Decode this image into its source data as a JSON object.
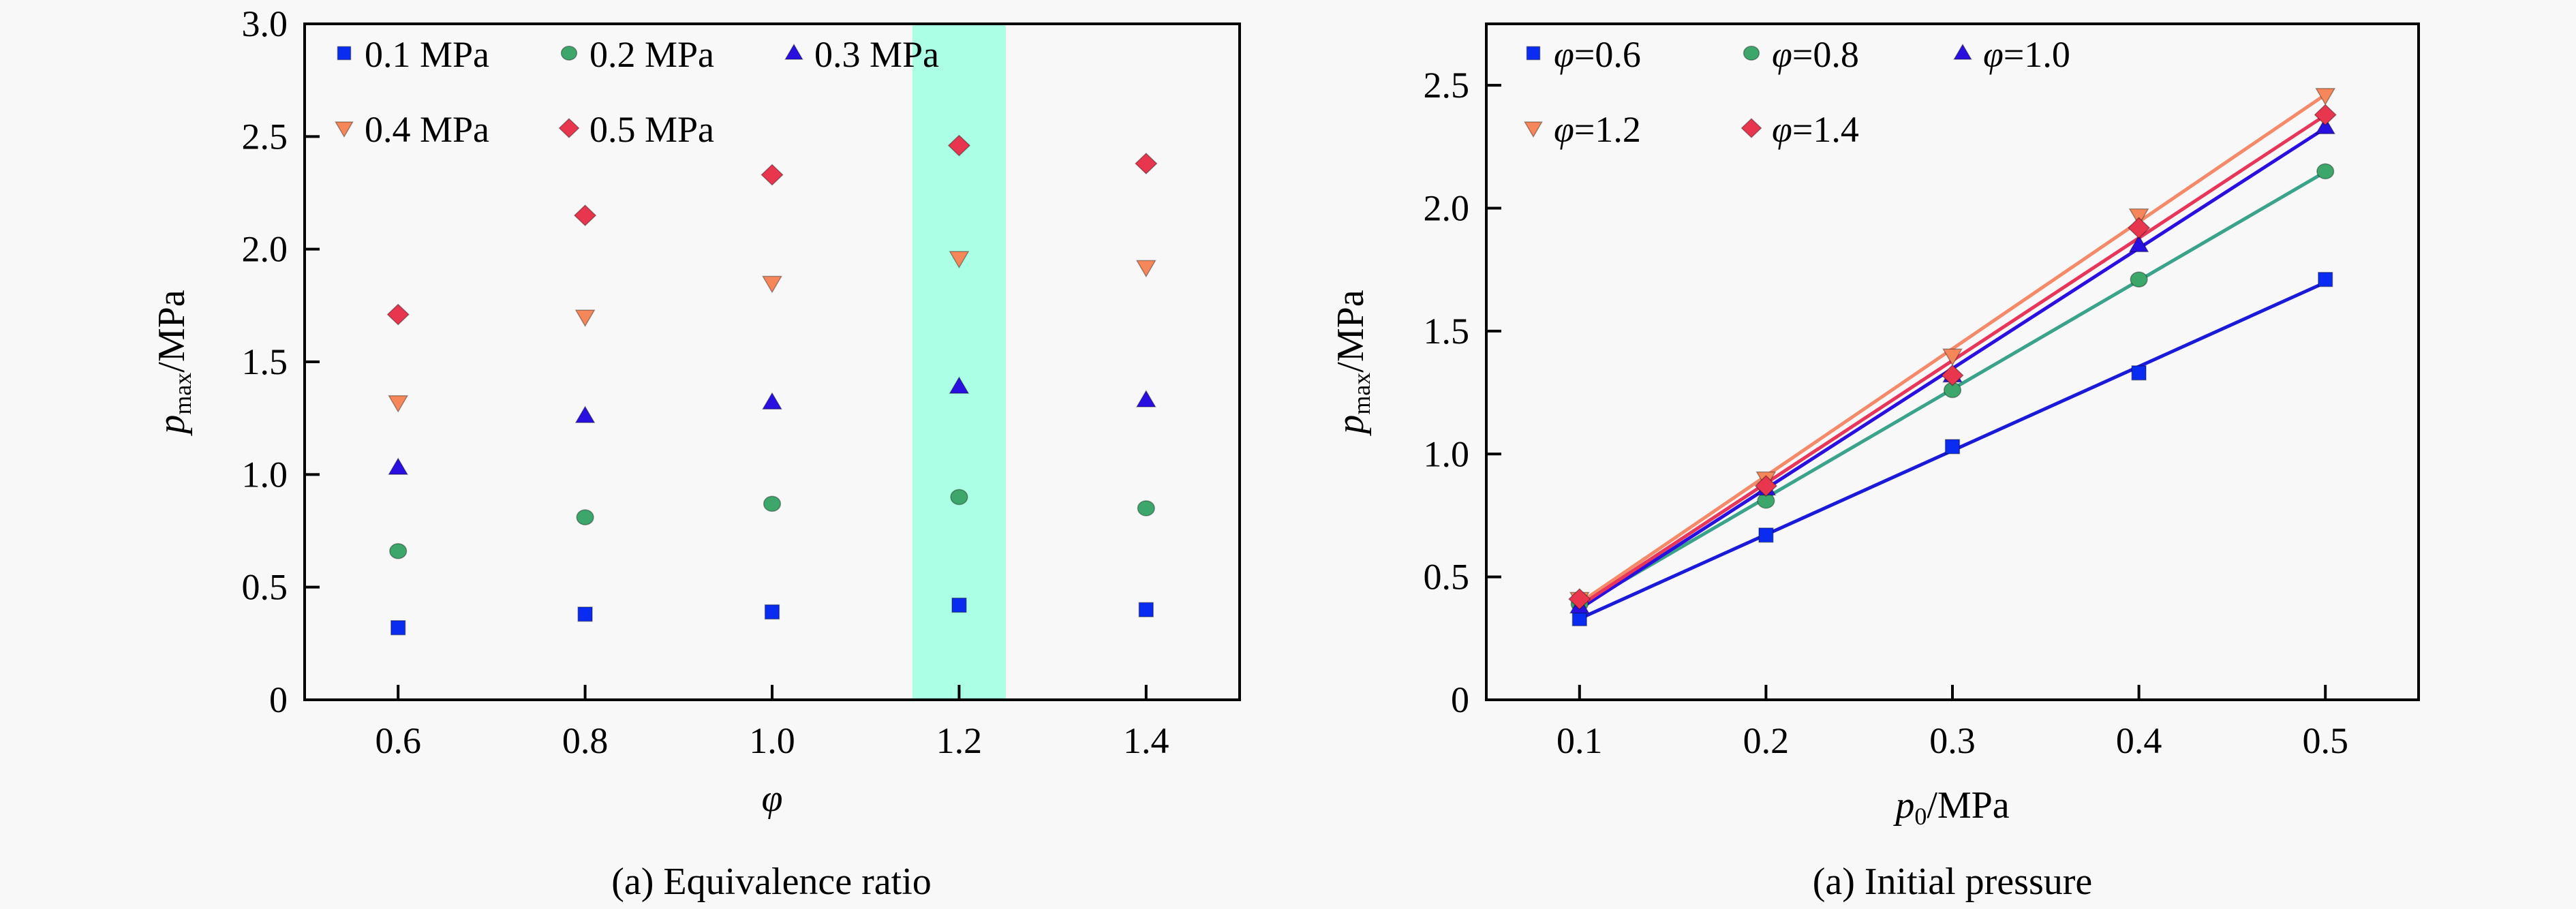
{
  "chart_data": [
    {
      "type": "scatter",
      "caption": "(a) Equivalence ratio",
      "xlabel": "φ",
      "ylabel": {
        "symbol": "p",
        "subscript": "max",
        "unit": "/MPa"
      },
      "xlim": [
        0.5,
        1.5
      ],
      "ylim": [
        0,
        3.0
      ],
      "xticks": [
        0.6,
        0.8,
        1.0,
        1.2,
        1.4
      ],
      "xtick_labels": [
        "0.6",
        "0.8",
        "1.0",
        "1.2",
        "1.4"
      ],
      "yticks": [
        0,
        0.5,
        1.0,
        1.5,
        2.0,
        2.5,
        3.0
      ],
      "ytick_labels": [
        "0",
        "0.5",
        "1.0",
        "1.5",
        "2.0",
        "2.5",
        "3.0"
      ],
      "grid": false,
      "legend_position": "top-left",
      "highlight_band": {
        "x": [
          1.15,
          1.25
        ],
        "color": "#aaffe4"
      },
      "x": [
        0.6,
        0.8,
        1.0,
        1.2,
        1.4
      ],
      "series": [
        {
          "name": "0.1 MPa",
          "marker": "square",
          "color": "#0a2cf0",
          "values": [
            0.32,
            0.38,
            0.39,
            0.42,
            0.4
          ]
        },
        {
          "name": "0.2 MPa",
          "marker": "circle",
          "color": "#3da66a",
          "values": [
            0.66,
            0.81,
            0.87,
            0.9,
            0.85
          ]
        },
        {
          "name": "0.3 MPa",
          "marker": "triangle-up",
          "color": "#2a10e0",
          "values": [
            1.03,
            1.26,
            1.32,
            1.39,
            1.33
          ]
        },
        {
          "name": "0.4 MPa",
          "marker": "triangle-down",
          "color": "#f5875a",
          "values": [
            1.32,
            1.7,
            1.85,
            1.96,
            1.92
          ]
        },
        {
          "name": "0.5 MPa",
          "marker": "diamond",
          "color": "#e8364f",
          "values": [
            1.71,
            2.15,
            2.33,
            2.46,
            2.38
          ]
        }
      ]
    },
    {
      "type": "line",
      "caption": "(a) Initial pressure",
      "xlabel": {
        "symbol": "p",
        "subscript": "0",
        "unit": "/MPa"
      },
      "ylabel": {
        "symbol": "p",
        "subscript": "max",
        "unit": "/MPa"
      },
      "xlim": [
        0.05,
        0.55
      ],
      "ylim": [
        0,
        2.75
      ],
      "xticks": [
        0.1,
        0.2,
        0.3,
        0.4,
        0.5
      ],
      "xtick_labels": [
        "0.1",
        "0.2",
        "0.3",
        "0.4",
        "0.5"
      ],
      "yticks": [
        0,
        0.5,
        1.0,
        1.5,
        2.0,
        2.5
      ],
      "ytick_labels": [
        "0",
        "0.5",
        "1.0",
        "1.5",
        "2.0",
        "2.5"
      ],
      "grid": false,
      "legend_position": "top-left",
      "x": [
        0.1,
        0.2,
        0.3,
        0.4,
        0.5
      ],
      "series": [
        {
          "name": "φ=0.6",
          "symbol": "φ",
          "value_label": "=0.6",
          "marker": "square",
          "color": "#0a2cf0",
          "line_color": "#1a1ad8",
          "values": [
            0.33,
            0.67,
            1.03,
            1.33,
            1.71
          ]
        },
        {
          "name": "φ=0.8",
          "symbol": "φ",
          "value_label": "=0.8",
          "marker": "circle",
          "color": "#3da66a",
          "line_color": "#3aa38a",
          "values": [
            0.39,
            0.81,
            1.26,
            1.71,
            2.15
          ]
        },
        {
          "name": "φ=1.0",
          "symbol": "φ",
          "value_label": "=1.0",
          "marker": "triangle-up",
          "color": "#2a10e0",
          "line_color": "#2a10e0",
          "values": [
            0.38,
            0.86,
            1.32,
            1.85,
            2.33
          ]
        },
        {
          "name": "φ=1.2",
          "symbol": "φ",
          "value_label": "=1.2",
          "marker": "triangle-down",
          "color": "#f5875a",
          "line_color": "#f58a6a",
          "values": [
            0.41,
            0.9,
            1.4,
            1.97,
            2.46
          ]
        },
        {
          "name": "φ=1.4",
          "symbol": "φ",
          "value_label": "=1.4",
          "marker": "diamond",
          "color": "#e8364f",
          "line_color": "#e8365a",
          "values": [
            0.41,
            0.87,
            1.32,
            1.92,
            2.38
          ]
        }
      ]
    }
  ]
}
